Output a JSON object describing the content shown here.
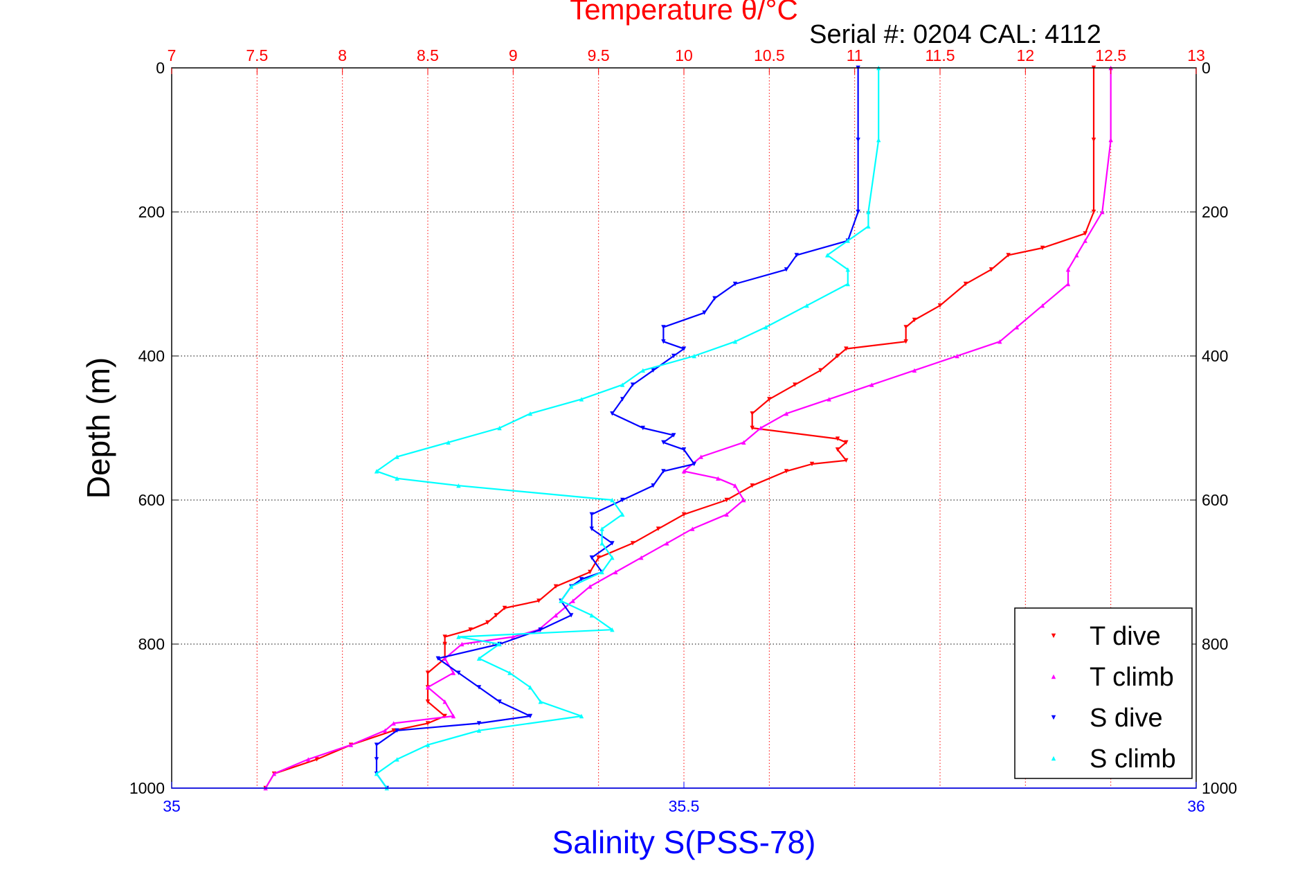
{
  "chart_data": {
    "type": "scatter",
    "title": "Temperature θ/°C",
    "subtitle": "Serial #: 0204  CAL: 4112",
    "xlabel": "Salinity S(PSS-78)",
    "ylabel": "Depth (m)",
    "x_top": {
      "min": 7,
      "max": 13,
      "ticks": [
        "7",
        "7.5",
        "8",
        "8.5",
        "9",
        "9.5",
        "10",
        "10.5",
        "11",
        "11.5",
        "12",
        "12.5",
        "13"
      ],
      "color": "#ff0000"
    },
    "x_bottom": {
      "min": 35,
      "max": 36,
      "ticks": [
        "35",
        "35.5",
        "36"
      ],
      "color": "#0000ff"
    },
    "y": {
      "min": 0,
      "max": 1000,
      "reversed": true,
      "ticks": [
        "0",
        "200",
        "400",
        "600",
        "800",
        "1000"
      ]
    },
    "grid": true,
    "legend_position": "bottom-right",
    "series": [
      {
        "name": "T dive",
        "axis": "top",
        "color": "#ff0000",
        "depth": [
          0,
          100,
          200,
          230,
          250,
          260,
          280,
          300,
          330,
          350,
          360,
          380,
          390,
          400,
          420,
          440,
          460,
          480,
          500,
          515,
          520,
          530,
          545,
          550,
          560,
          580,
          600,
          620,
          640,
          660,
          680,
          700,
          720,
          740,
          750,
          760,
          770,
          780,
          790,
          800,
          820,
          840,
          860,
          880,
          900,
          910,
          920,
          940,
          960,
          980,
          1000
        ],
        "values": [
          12.4,
          12.4,
          12.4,
          12.35,
          12.1,
          11.9,
          11.8,
          11.65,
          11.5,
          11.35,
          11.3,
          11.3,
          10.95,
          10.9,
          10.8,
          10.65,
          10.5,
          10.4,
          10.4,
          10.9,
          10.95,
          10.9,
          10.95,
          10.75,
          10.6,
          10.4,
          10.25,
          10.0,
          9.85,
          9.7,
          9.5,
          9.45,
          9.25,
          9.15,
          8.95,
          8.9,
          8.85,
          8.75,
          8.6,
          8.6,
          8.6,
          8.5,
          8.5,
          8.5,
          8.6,
          8.5,
          8.3,
          8.05,
          7.85,
          7.6,
          7.55
        ]
      },
      {
        "name": "T climb",
        "axis": "top",
        "color": "#ff00ff",
        "depth": [
          0,
          100,
          200,
          240,
          260,
          280,
          300,
          330,
          360,
          380,
          400,
          420,
          440,
          460,
          480,
          500,
          520,
          540,
          560,
          570,
          580,
          600,
          620,
          640,
          660,
          680,
          700,
          720,
          740,
          760,
          780,
          790,
          800,
          820,
          840,
          860,
          880,
          900,
          910,
          920,
          940,
          960,
          980,
          1000
        ],
        "values": [
          12.5,
          12.5,
          12.45,
          12.35,
          12.3,
          12.25,
          12.25,
          12.1,
          11.95,
          11.85,
          11.6,
          11.35,
          11.1,
          10.85,
          10.6,
          10.45,
          10.35,
          10.1,
          10.0,
          10.2,
          10.3,
          10.35,
          10.25,
          10.05,
          9.9,
          9.75,
          9.6,
          9.45,
          9.35,
          9.25,
          9.15,
          9.0,
          8.7,
          8.6,
          8.65,
          8.5,
          8.6,
          8.65,
          8.3,
          8.25,
          8.05,
          7.8,
          7.6,
          7.55
        ]
      },
      {
        "name": "S dive",
        "axis": "bottom",
        "color": "#0000ff",
        "depth": [
          0,
          100,
          200,
          240,
          260,
          280,
          300,
          320,
          340,
          360,
          380,
          390,
          400,
          420,
          440,
          460,
          480,
          500,
          510,
          520,
          530,
          550,
          560,
          580,
          600,
          620,
          640,
          660,
          680,
          700,
          710,
          720,
          740,
          760,
          780,
          800,
          820,
          840,
          860,
          880,
          900,
          910,
          920,
          940,
          960,
          980,
          1000
        ],
        "values": [
          35.67,
          35.67,
          35.67,
          35.66,
          35.61,
          35.6,
          35.55,
          35.53,
          35.52,
          35.48,
          35.48,
          35.5,
          35.49,
          35.47,
          35.45,
          35.44,
          35.43,
          35.46,
          35.49,
          35.48,
          35.5,
          35.51,
          35.48,
          35.47,
          35.44,
          35.41,
          35.41,
          35.43,
          35.41,
          35.42,
          35.4,
          35.39,
          35.38,
          35.39,
          35.36,
          35.32,
          35.26,
          35.28,
          35.3,
          35.32,
          35.35,
          35.3,
          35.22,
          35.2,
          35.2,
          35.2,
          35.21
        ]
      },
      {
        "name": "S climb",
        "axis": "bottom",
        "color": "#00ffff",
        "depth": [
          0,
          100,
          200,
          220,
          240,
          260,
          280,
          300,
          330,
          360,
          380,
          400,
          420,
          440,
          460,
          480,
          500,
          520,
          540,
          560,
          570,
          580,
          600,
          620,
          640,
          660,
          680,
          700,
          720,
          740,
          760,
          780,
          790,
          800,
          820,
          840,
          860,
          880,
          900,
          920,
          940,
          960,
          980,
          1000
        ],
        "values": [
          35.69,
          35.69,
          35.68,
          35.68,
          35.66,
          35.64,
          35.66,
          35.66,
          35.62,
          35.58,
          35.55,
          35.51,
          35.46,
          35.44,
          35.4,
          35.35,
          35.32,
          35.27,
          35.22,
          35.2,
          35.22,
          35.28,
          35.43,
          35.44,
          35.42,
          35.42,
          35.43,
          35.42,
          35.39,
          35.38,
          35.41,
          35.43,
          35.28,
          35.32,
          35.3,
          35.33,
          35.35,
          35.36,
          35.4,
          35.3,
          35.25,
          35.22,
          35.2,
          35.21
        ]
      }
    ]
  }
}
